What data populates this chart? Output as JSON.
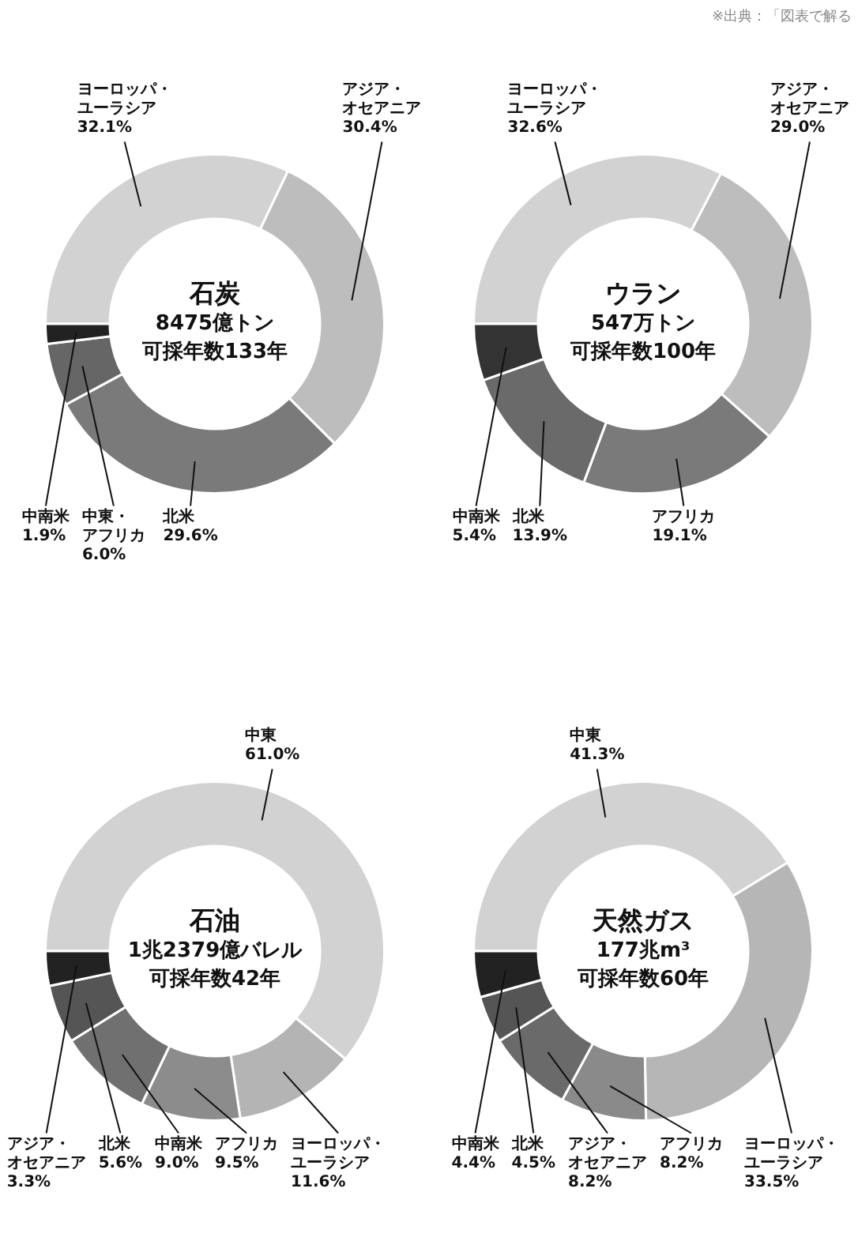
{
  "chart_data": [
    {
      "type": "donut",
      "title": "石炭",
      "subtitle": "8475億トン",
      "annotations": [
        "可採年数133年"
      ],
      "categories": [
        "ヨーロッパ・ユーラシア",
        "アジア・オセアニア",
        "北米",
        "中東・アフリカ",
        "中南米"
      ],
      "values": [
        32.1,
        30.4,
        29.6,
        6.0,
        1.9
      ],
      "value_labels": [
        "32.1%",
        "30.4%",
        "29.6%",
        "6.0%",
        "1.9%"
      ],
      "colors": [
        "#d2d2d2",
        "#bdbdbd",
        "#7a7a7a",
        "#666666",
        "#222222"
      ]
    },
    {
      "type": "donut",
      "title": "ウラン",
      "subtitle": "547万トン",
      "annotations": [
        "可採年数100年"
      ],
      "categories": [
        "ヨーロッパ・ユーラシア",
        "アジア・オセアニア",
        "アフリカ",
        "北米",
        "中南米"
      ],
      "values": [
        32.6,
        29.0,
        19.1,
        13.9,
        5.4
      ],
      "value_labels": [
        "32.6%",
        "29.0%",
        "19.1%",
        "13.9%",
        "5.4%"
      ],
      "colors": [
        "#d2d2d2",
        "#bdbdbd",
        "#7a7a7a",
        "#6a6a6a",
        "#333333"
      ]
    },
    {
      "type": "donut",
      "title": "石油",
      "subtitle": "1兆2379億バレル",
      "annotations": [
        "可採年数42年"
      ],
      "categories": [
        "中東",
        "ヨーロッパ・ユーラシア",
        "アフリカ",
        "中南米",
        "北米",
        "アジア・オセアニア"
      ],
      "values": [
        61.0,
        11.6,
        9.5,
        9.0,
        5.6,
        3.3
      ],
      "value_labels": [
        "61.0%",
        "11.6%",
        "9.5%",
        "9.0%",
        "5.6%",
        "3.3%"
      ],
      "colors": [
        "#d2d2d2",
        "#b4b4b4",
        "#8c8c8c",
        "#707070",
        "#555555",
        "#222222"
      ]
    },
    {
      "type": "donut",
      "title": "天然ガス",
      "subtitle": "177兆m³",
      "annotations": [
        "可採年数60年"
      ],
      "categories": [
        "中東",
        "ヨーロッパ・ユーラシア",
        "アフリカ",
        "アジア・オセアニア",
        "北米",
        "中南米"
      ],
      "values": [
        41.3,
        33.5,
        8.2,
        8.2,
        4.5,
        4.4
      ],
      "value_labels": [
        "41.3%",
        "33.5%",
        "8.2%",
        "8.2%",
        "4.5%",
        "4.4%"
      ],
      "colors": [
        "#d2d2d2",
        "#b6b6b6",
        "#8a8a8a",
        "#6a6a6a",
        "#555555",
        "#222222"
      ]
    },
    {
      "type": "other",
      "annotations": [
        "※出典：「図表で解る"
      ]
    }
  ]
}
